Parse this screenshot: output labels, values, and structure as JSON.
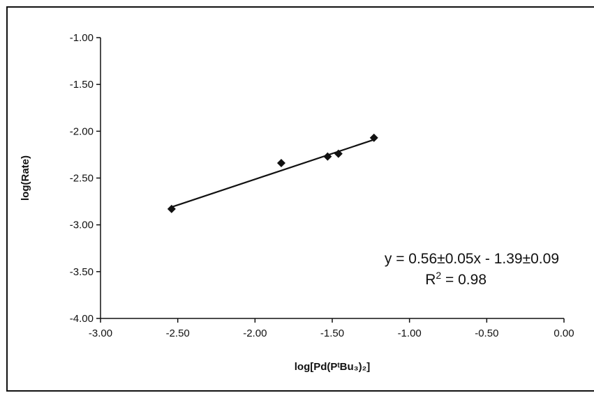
{
  "chart_data": {
    "type": "scatter",
    "xlabel": "log[Pd(PᵗBu₃)₂]",
    "ylabel": "log(Rate)",
    "xlim": [
      -3.0,
      0.0
    ],
    "ylim": [
      -4.0,
      -1.0
    ],
    "x_ticks": [
      -3.0,
      -2.5,
      -2.0,
      -1.5,
      -1.0,
      -0.5,
      0.0
    ],
    "x_tick_labels": [
      "-3.00",
      "-2.50",
      "-2.00",
      "-1.50",
      "-1.00",
      "-0.50",
      "0.00"
    ],
    "y_ticks": [
      -1.0,
      -1.5,
      -2.0,
      -2.5,
      -3.0,
      -3.5,
      -4.0
    ],
    "y_tick_labels": [
      "-1.00",
      "-1.50",
      "-2.00",
      "-2.50",
      "-3.00",
      "-3.50",
      "-4.00"
    ],
    "grid": false,
    "marker": "diamond",
    "points": [
      {
        "x": -2.54,
        "y": -2.83
      },
      {
        "x": -1.83,
        "y": -2.34
      },
      {
        "x": -1.53,
        "y": -2.27
      },
      {
        "x": -1.46,
        "y": -2.24
      },
      {
        "x": -1.23,
        "y": -2.07
      }
    ],
    "fit_line": {
      "x": [
        -2.54,
        -1.23
      ],
      "y": [
        -2.81,
        -2.09
      ]
    },
    "annotations": {
      "equation": "y = 0.56±0.05x - 1.39±0.09",
      "r2_prefix": "R",
      "r2_sup": "2",
      "r2_value": " = 0.98"
    }
  }
}
